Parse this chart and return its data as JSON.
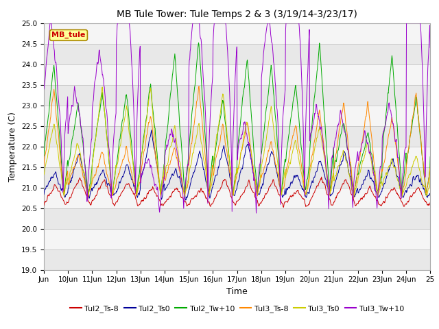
{
  "title": "MB Tule Tower: Tule Temps 2 & 3 (3/19/14-3/23/17)",
  "xlabel": "Time",
  "ylabel": "Temperature (C)",
  "ylim": [
    19.0,
    25.0
  ],
  "yticks": [
    19.0,
    19.5,
    20.0,
    20.5,
    21.0,
    21.5,
    22.0,
    22.5,
    23.0,
    23.5,
    24.0,
    24.5,
    25.0
  ],
  "xtick_labels": [
    "Jun",
    "10Jun",
    "11Jun",
    "12Jun",
    "13Jun",
    "14Jun",
    "15Jun",
    "16Jun",
    "17Jun",
    "18Jun",
    "19Jun",
    "20Jun",
    "21Jun",
    "22Jun",
    "23Jun",
    "24Jun",
    "25"
  ],
  "series_names": [
    "Tul2_Ts-8",
    "Tul2_Ts0",
    "Tul2_Tw+10",
    "Tul3_Ts-8",
    "Tul3_Ts0",
    "Tul3_Tw+10"
  ],
  "series_colors": [
    "#cc0000",
    "#000099",
    "#00aa00",
    "#ff8800",
    "#cccc00",
    "#9900cc"
  ],
  "bg_color": "#ffffff",
  "plot_bg": "#e8e8e8",
  "grid_color": "#cccccc",
  "n_points": 960
}
